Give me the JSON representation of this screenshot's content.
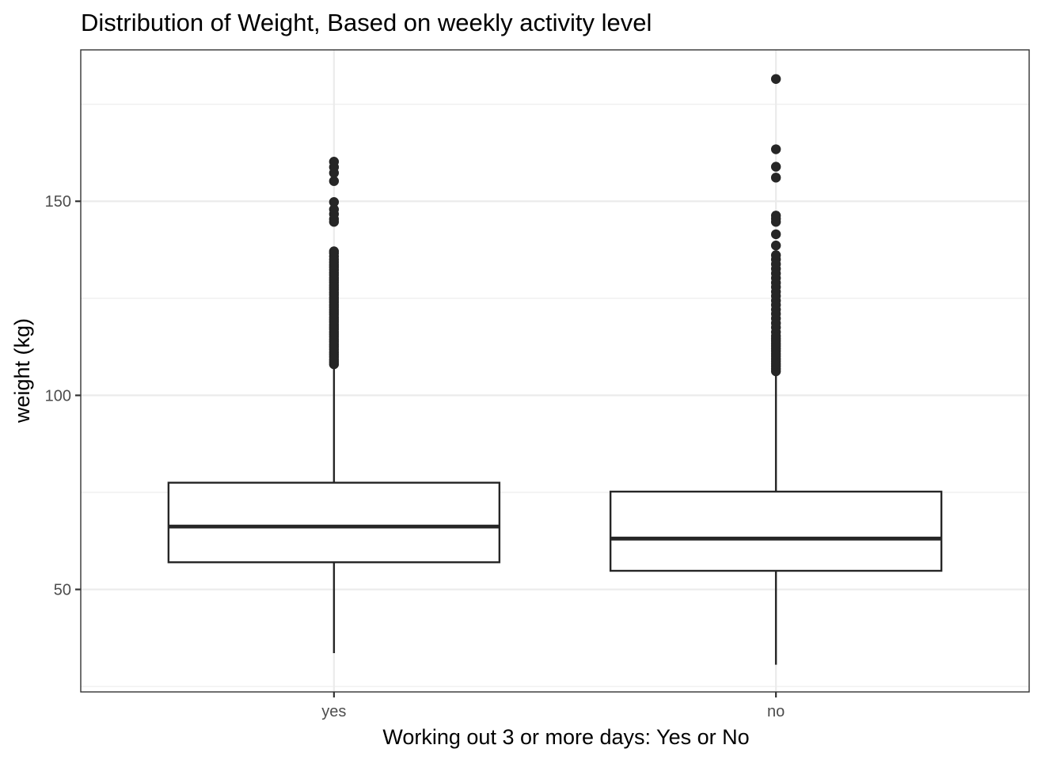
{
  "chart_data": {
    "type": "boxplot",
    "title": "Distribution of Weight, Based on weekly activity level",
    "xlabel": "Working out 3 or more days: Yes or No",
    "ylabel": "weight (kg)",
    "categories": [
      "yes",
      "no"
    ],
    "ylim": [
      23.6,
      189.0
    ],
    "yticks": [
      50,
      100,
      150
    ],
    "ytick_labels": [
      "50",
      "100",
      "150"
    ],
    "y_minor_gridlines": [
      25,
      75,
      125,
      175
    ],
    "grid": true,
    "legend": "none",
    "colors": {
      "box_fill": "#ffffff",
      "box_line": "#262626",
      "grid": "#ebebeb",
      "panel_border": "#333333"
    },
    "boxes": [
      {
        "category": "yes",
        "whisker_low": 33.6,
        "q1": 57.0,
        "median": 66.2,
        "q3": 77.5,
        "whisker_high": 107.5,
        "outliers": [
          108.0,
          108.6,
          109.2,
          109.9,
          110.5,
          111.1,
          111.8,
          112.5,
          113.1,
          113.8,
          114.4,
          115.1,
          115.7,
          116.3,
          117.0,
          117.6,
          118.2,
          118.9,
          119.5,
          120.1,
          120.8,
          121.4,
          122.0,
          122.7,
          123.3,
          124.0,
          124.6,
          125.2,
          125.9,
          126.5,
          127.2,
          127.8,
          128.4,
          129.1,
          129.7,
          130.3,
          131.0,
          131.6,
          132.3,
          133.0,
          133.6,
          134.3,
          135.0,
          135.8,
          136.6,
          137.1,
          144.7,
          145.4,
          146.7,
          147.9,
          149.8,
          155.2,
          157.3,
          158.8,
          160.2
        ]
      },
      {
        "category": "no",
        "whisker_low": 30.6,
        "q1": 54.8,
        "median": 63.1,
        "q3": 75.2,
        "whisker_high": 105.8,
        "outliers": [
          106.2,
          106.8,
          107.5,
          108.1,
          108.8,
          109.4,
          110.1,
          110.7,
          111.4,
          112.0,
          112.7,
          113.3,
          114.0,
          114.6,
          115.3,
          116.3,
          117.5,
          118.6,
          119.8,
          121.0,
          122.1,
          123.3,
          124.4,
          125.6,
          126.7,
          127.9,
          129.0,
          130.2,
          131.4,
          132.6,
          133.8,
          135.0,
          136.1,
          138.6,
          141.5,
          144.7,
          145.5,
          146.3,
          156.1,
          158.9,
          163.4,
          181.5
        ]
      }
    ]
  }
}
